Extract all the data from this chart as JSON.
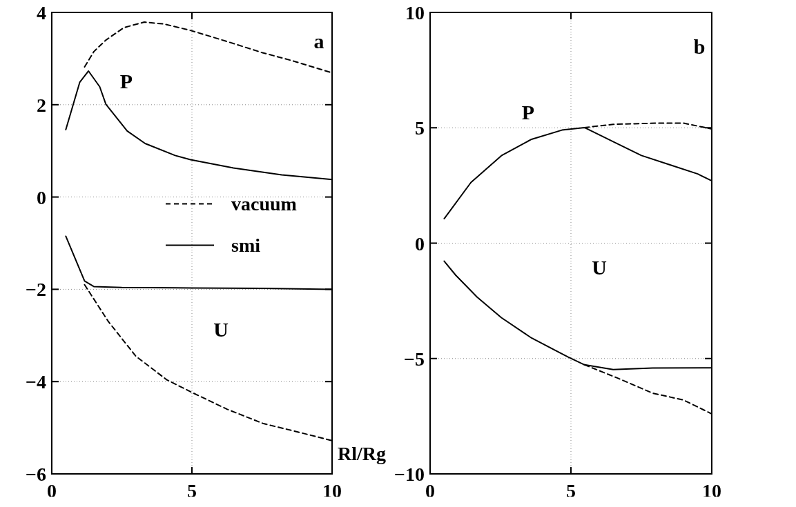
{
  "chart_data": [
    {
      "type": "line",
      "xlabel": "Rl/Rg",
      "xlim": [
        0,
        10
      ],
      "ylim": [
        -6,
        4
      ],
      "xticks": [
        0,
        5,
        10
      ],
      "yticks": [
        -6,
        -4,
        -2,
        0,
        2,
        4
      ],
      "grid": true,
      "legend": "right",
      "annotations": [
        "a",
        "P",
        "U"
      ],
      "series": [
        {
          "name": "vacuum",
          "color": "#000000",
          "line_style": "dashed",
          "x": [
            1.17,
            1.5,
            1.93,
            2.57,
            3.3,
            4.0,
            4.95,
            6.2,
            7.5,
            8.6,
            10
          ],
          "values": [
            2.82,
            3.15,
            3.4,
            3.67,
            3.79,
            3.75,
            3.61,
            3.38,
            3.13,
            2.95,
            2.69
          ]
        },
        {
          "name": "smi",
          "color": "#000000",
          "line_style": "solid",
          "x": [
            0.5,
            1.0,
            1.31,
            1.71,
            1.93,
            2.69,
            3.33,
            4.4,
            4.95,
            6.48,
            8.2,
            10
          ],
          "values": [
            1.46,
            2.49,
            2.73,
            2.39,
            2.01,
            1.43,
            1.16,
            0.9,
            0.81,
            0.63,
            0.48,
            0.38
          ]
        },
        {
          "color": "#000000",
          "line_style": "solid",
          "x": [
            0.5,
            1.17,
            1.5,
            2.5,
            5,
            7.5,
            10
          ],
          "values": [
            -0.85,
            -1.82,
            -1.94,
            -1.96,
            -1.97,
            -1.98,
            -2.0
          ]
        },
        {
          "color": "#000000",
          "line_style": "dashed",
          "x": [
            1.17,
            2.02,
            3.0,
            4.1,
            4.95,
            6.26,
            7.55,
            8.64,
            10
          ],
          "values": [
            -1.9,
            -2.7,
            -3.45,
            -3.96,
            -4.22,
            -4.6,
            -4.91,
            -5.07,
            -5.28
          ]
        }
      ]
    },
    {
      "type": "line",
      "xlim": [
        0,
        10
      ],
      "ylim": [
        -10,
        10
      ],
      "xticks": [
        0,
        5,
        10
      ],
      "yticks": [
        -10,
        -5,
        0,
        5,
        10
      ],
      "grid": true,
      "annotations": [
        "b",
        "P",
        "U"
      ],
      "series": [
        {
          "color": "#000000",
          "line_style": "solid",
          "x": [
            0.5,
            1.45,
            2.53,
            3.6,
            4.68,
            5.48,
            6.5,
            7.5,
            8.5,
            9.5,
            10
          ],
          "values": [
            1.06,
            2.63,
            3.79,
            4.5,
            4.9,
            5.01,
            4.4,
            3.8,
            3.4,
            3.0,
            2.7
          ]
        },
        {
          "color": "#000000",
          "line_style": "dashed",
          "x": [
            5.48,
            6.5,
            8,
            9,
            10
          ],
          "values": [
            5.01,
            5.15,
            5.2,
            5.2,
            4.95
          ]
        },
        {
          "color": "#000000",
          "line_style": "solid",
          "x": [
            0.5,
            0.91,
            1.67,
            2.53,
            3.6,
            4.89,
            5.48,
            6.5,
            7.9,
            10
          ],
          "values": [
            -0.78,
            -1.39,
            -2.34,
            -3.23,
            -4.11,
            -4.93,
            -5.27,
            -5.48,
            -5.41,
            -5.4
          ]
        },
        {
          "color": "#000000",
          "line_style": "dashed",
          "x": [
            5.48,
            6.6,
            7.9,
            9,
            10
          ],
          "values": [
            -5.27,
            -5.82,
            -6.5,
            -6.8,
            -7.4
          ]
        }
      ]
    }
  ]
}
